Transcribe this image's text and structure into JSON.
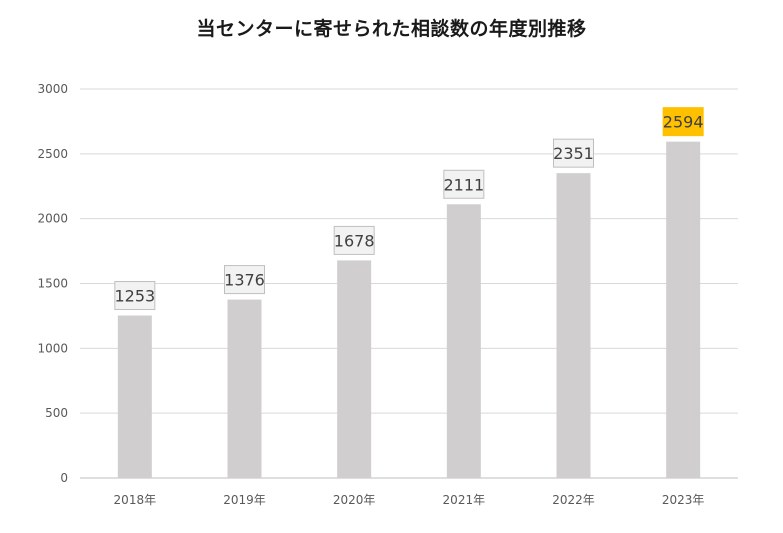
{
  "chart_data": {
    "type": "bar",
    "title": "当センターに寄せられた相談数の年度別推移",
    "categories": [
      "2018年",
      "2019年",
      "2020年",
      "2021年",
      "2022年",
      "2023年"
    ],
    "values": [
      1253,
      1376,
      1678,
      2111,
      2351,
      2594
    ],
    "ylim": [
      0,
      3000
    ],
    "yticks": [
      0,
      500,
      1000,
      1500,
      2000,
      2500,
      3000
    ],
    "xlabel": "",
    "ylabel": "",
    "grid": true,
    "legend": "none",
    "highlight_index": 5,
    "colors": {
      "bar": "#d0cece",
      "label_box_fill": "#f2f2f2",
      "label_box_stroke": "#bfbfbf",
      "highlight_fill": "#ffc000",
      "gridline": "#d9d9d9"
    }
  }
}
